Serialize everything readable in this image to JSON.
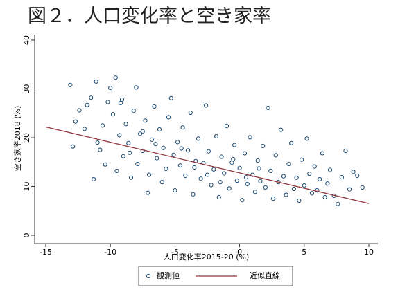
{
  "chart_data": {
    "type": "scatter",
    "title": "図２．人口変化率と空き家率",
    "x_label": "人口変化率2015-20 (%)",
    "y_label": "空き家率2018 (%)",
    "xlim": [
      -15,
      10
    ],
    "xticks": [
      -15,
      -10,
      -5,
      0,
      5,
      10
    ],
    "ylim": [
      0,
      40
    ],
    "yticks": [
      0,
      10,
      20,
      30,
      40
    ],
    "legend": "bottom",
    "series": [
      {
        "name": "観測値",
        "color": "#1a476f",
        "x": [
          -13.1,
          -12.9,
          -12.7,
          -12.4,
          -12,
          -11.8,
          -11.5,
          -11.3,
          -11.1,
          -11,
          -10.8,
          -10.6,
          -10.4,
          -10.2,
          -10,
          -9.8,
          -9.6,
          -9.5,
          -9.3,
          -9.1,
          -9,
          -8.8,
          -8.6,
          -8.4,
          -8.2,
          -8,
          -7.9,
          -7.7,
          -7.5,
          -7.3,
          -7.1,
          -7,
          -6.8,
          -6.6,
          -6.4,
          -6.2,
          -6,
          -5.9,
          -5.7,
          -5.5,
          -5.3,
          -5.1,
          -5,
          -4.8,
          -4.6,
          -4.4,
          -4.2,
          -4,
          -3.8,
          -3.6,
          -3.4,
          -3.2,
          -3,
          -2.8,
          -2.6,
          -2.4,
          -2.2,
          -2,
          -1.8,
          -1.6,
          -1.4,
          -1.2,
          -1,
          -0.8,
          -0.6,
          -0.4,
          -0.2,
          0,
          0.2,
          0.4,
          0.6,
          0.8,
          1,
          1.2,
          1.4,
          1.6,
          1.8,
          2,
          2.2,
          2.4,
          2.6,
          2.8,
          3,
          3.2,
          3.4,
          3.6,
          3.8,
          4,
          4.2,
          4.4,
          4.6,
          4.8,
          5,
          5.2,
          5.4,
          5.6,
          5.8,
          6,
          6.2,
          6.4,
          6.6,
          6.8,
          7,
          7.3,
          7.6,
          7.9,
          8.2,
          8.5,
          8.8,
          9.1,
          9.5,
          -3.5,
          -2.5,
          -1.5,
          -0.5,
          0.5,
          1.5,
          -4.5,
          -6.5,
          -7.5,
          -8.5,
          -9.2
        ],
        "values": [
          30.8,
          18.2,
          23.3,
          25.6,
          21.8,
          26.7,
          28.2,
          11.5,
          31.5,
          19,
          17.5,
          22.5,
          14.5,
          27.3,
          30.2,
          24.8,
          32.3,
          13.2,
          20.5,
          27.8,
          16.2,
          22.8,
          18.9,
          11.8,
          25.5,
          30.3,
          14.6,
          20.8,
          17.3,
          23.5,
          8.7,
          12.4,
          19.6,
          26.4,
          15.8,
          21.7,
          10.9,
          17.9,
          13.6,
          24.2,
          28.1,
          16.5,
          9.2,
          19.1,
          14.3,
          22.1,
          12.2,
          17.4,
          25.1,
          8.4,
          15.2,
          19.8,
          11.6,
          14.8,
          26.6,
          17.2,
          10.3,
          13.5,
          20.3,
          7.8,
          16.1,
          12.7,
          22.4,
          9.6,
          14.9,
          18.5,
          11.2,
          13.8,
          7.2,
          16.8,
          10.5,
          20.1,
          12.4,
          8.9,
          15.3,
          11.1,
          18.3,
          9.8,
          26.1,
          13.2,
          7.5,
          16.4,
          10.9,
          21.6,
          12.1,
          8.3,
          14.6,
          18.9,
          9.5,
          11.8,
          7.1,
          15.5,
          10.2,
          19.8,
          12.6,
          8.6,
          14.1,
          9.2,
          11.5,
          16.8,
          7.8,
          10.6,
          13.4,
          8.1,
          6.4,
          11.9,
          17.3,
          9.4,
          13,
          12.2,
          9.8,
          13.9,
          12.4,
          10.9,
          15.6,
          11.9,
          13.7,
          17.8,
          18.7,
          21.3,
          16.9,
          27.1
        ]
      },
      {
        "name": "近似直線",
        "color": "#90353b",
        "x": [
          -15,
          10
        ],
        "values": [
          22.2,
          6.5
        ]
      }
    ]
  }
}
